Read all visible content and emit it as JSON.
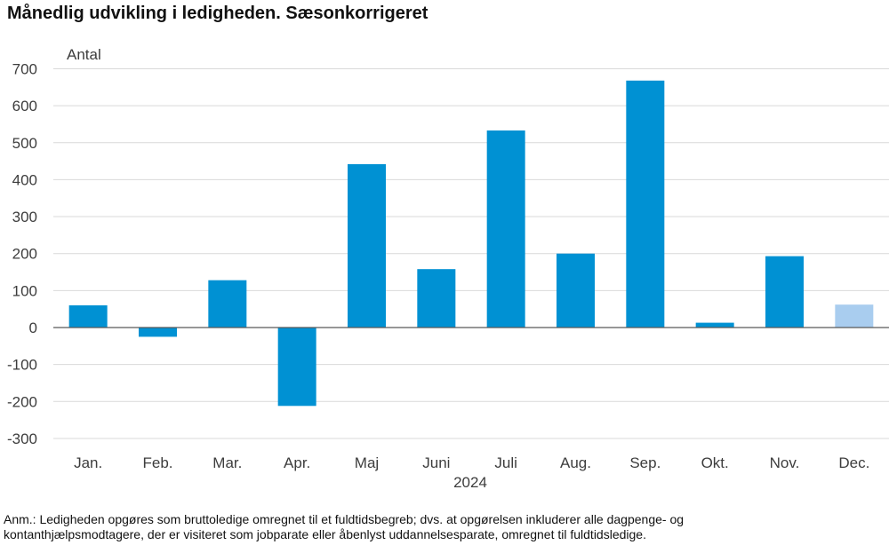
{
  "header": {
    "title": "Månedlig udvikling i ledigheden. Sæsonkorrigeret"
  },
  "chart_data": {
    "type": "bar",
    "ylabel": "Antal",
    "xlabel": "2024",
    "categories": [
      "Jan.",
      "Feb.",
      "Mar.",
      "Apr.",
      "Maj",
      "Juni",
      "Juli",
      "Aug.",
      "Sep.",
      "Okt.",
      "Nov.",
      "Dec."
    ],
    "values": [
      60,
      -25,
      128,
      -212,
      442,
      158,
      533,
      200,
      668,
      13,
      193,
      62
    ],
    "ylim": [
      -300,
      700
    ],
    "yticks": [
      -300,
      -200,
      -100,
      0,
      100,
      200,
      300,
      400,
      500,
      600,
      700
    ],
    "ytick_labels": [
      "-300",
      "-200",
      "-100",
      "0",
      "100",
      "200",
      "300",
      "400",
      "500",
      "600",
      "700"
    ],
    "grid": true,
    "colors": {
      "bar": "#0091d3",
      "highlight_bar": "#a9cdef",
      "grid": "#d9d9d9",
      "zero_line": "#595959"
    },
    "highlight_index": 11
  },
  "footer": {
    "note_line1": "Anm.: Ledigheden opgøres som bruttoledige omregnet til et fuldtidsbegreb; dvs. at opgørelsen inkluderer alle dagpenge- og",
    "note_line2": "kontanthjælpsmodtagere, der er visiteret som jobparate eller åbenlyst uddannelsesparate, omregnet til fuldtidsledige."
  }
}
